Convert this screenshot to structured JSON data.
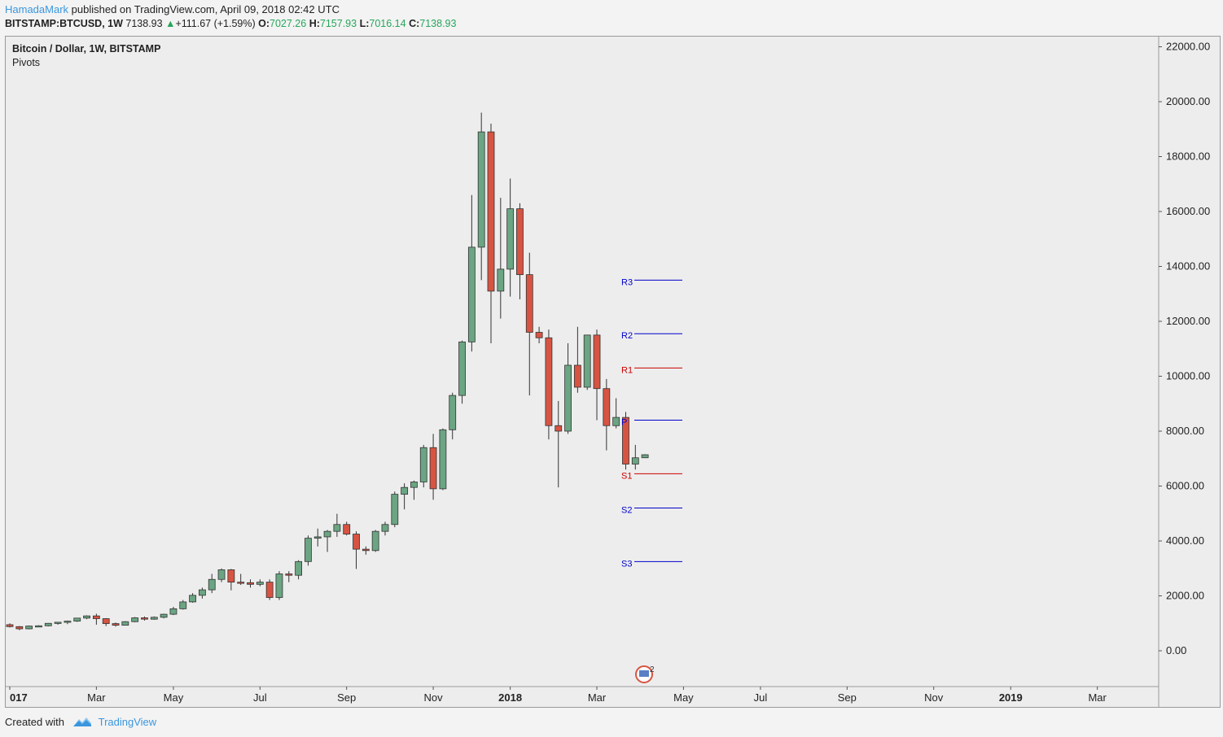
{
  "header": {
    "author": "HamadaMark",
    "published": "published on TradingView.com, April 09, 2018 02:42 UTC"
  },
  "quote": {
    "symbol": "BITSTAMP:BTCUSD, 1W",
    "last": "7138.93",
    "change": "+111.67 (+1.59%)",
    "o_label": "O:",
    "o": "7027.26",
    "h_label": "H:",
    "h": "7157.93",
    "l_label": "L:",
    "l": "7016.14",
    "c_label": "C:",
    "c": "7138.93"
  },
  "legend": {
    "title": "Bitcoin / Dollar, 1W, BITSTAMP",
    "indicator": "Pivots"
  },
  "footer": {
    "created": "Created with",
    "brand": "TradingView"
  },
  "colors": {
    "up": "#6ba583",
    "down": "#d75442",
    "pivot_blue": "#0000cc",
    "pivot_red": "#cc0000",
    "brand": "#3a96dd"
  },
  "chart_data": {
    "type": "candlestick",
    "y_ticks": [
      0,
      2000,
      4000,
      6000,
      8000,
      10000,
      12000,
      14000,
      16000,
      18000,
      20000,
      22000
    ],
    "y_tick_labels": [
      "0.00",
      "2000.00",
      "4000.00",
      "6000.00",
      "8000.00",
      "10000.00",
      "12000.00",
      "14000.00",
      "16000.00",
      "18000.00",
      "20000.00",
      "22000.00"
    ],
    "x_ticks": [
      {
        "label": "017",
        "week": 0,
        "bold": true
      },
      {
        "label": "Mar",
        "week": 9
      },
      {
        "label": "May",
        "week": 17
      },
      {
        "label": "Jul",
        "week": 26
      },
      {
        "label": "Sep",
        "week": 35
      },
      {
        "label": "Nov",
        "week": 44
      },
      {
        "label": "2018",
        "week": 52,
        "bold": true
      },
      {
        "label": "Mar",
        "week": 61
      },
      {
        "label": "May",
        "week": 70
      },
      {
        "label": "Jul",
        "week": 78
      },
      {
        "label": "Sep",
        "week": 87
      },
      {
        "label": "Nov",
        "week": 96
      },
      {
        "label": "2019",
        "week": 104,
        "bold": true
      },
      {
        "label": "Mar",
        "week": 113
      }
    ],
    "ohlc": [
      [
        950,
        1000,
        850,
        880
      ],
      [
        880,
        900,
        750,
        800
      ],
      [
        800,
        920,
        780,
        900
      ],
      [
        900,
        930,
        880,
        910
      ],
      [
        910,
        1010,
        890,
        1000
      ],
      [
        1000,
        1050,
        950,
        1040
      ],
      [
        1040,
        1100,
        970,
        1080
      ],
      [
        1080,
        1200,
        1050,
        1190
      ],
      [
        1190,
        1290,
        1150,
        1270
      ],
      [
        1270,
        1350,
        950,
        1170
      ],
      [
        1170,
        1190,
        900,
        990
      ],
      [
        990,
        1030,
        880,
        930
      ],
      [
        930,
        1080,
        920,
        1060
      ],
      [
        1060,
        1230,
        1040,
        1200
      ],
      [
        1200,
        1250,
        1100,
        1150
      ],
      [
        1150,
        1250,
        1130,
        1220
      ],
      [
        1220,
        1350,
        1180,
        1330
      ],
      [
        1330,
        1600,
        1300,
        1530
      ],
      [
        1530,
        1850,
        1500,
        1780
      ],
      [
        1780,
        2100,
        1750,
        2020
      ],
      [
        2020,
        2300,
        1900,
        2220
      ],
      [
        2220,
        2800,
        2100,
        2600
      ],
      [
        2600,
        3000,
        2500,
        2950
      ],
      [
        2950,
        2980,
        2200,
        2500
      ],
      [
        2500,
        2800,
        2400,
        2480
      ],
      [
        2480,
        2600,
        2300,
        2420
      ],
      [
        2420,
        2600,
        2350,
        2500
      ],
      [
        2500,
        2600,
        1850,
        1940
      ],
      [
        1940,
        2900,
        1850,
        2800
      ],
      [
        2800,
        2900,
        2500,
        2750
      ],
      [
        2750,
        3300,
        2600,
        3250
      ],
      [
        3250,
        4200,
        3100,
        4100
      ],
      [
        4100,
        4450,
        3800,
        4150
      ],
      [
        4150,
        4400,
        3600,
        4350
      ],
      [
        4350,
        4990,
        4150,
        4600
      ],
      [
        4600,
        4700,
        4200,
        4250
      ],
      [
        4250,
        4350,
        2980,
        3700
      ],
      [
        3700,
        3800,
        3500,
        3650
      ],
      [
        3650,
        4400,
        3600,
        4350
      ],
      [
        4350,
        4700,
        4200,
        4600
      ],
      [
        4600,
        5800,
        4500,
        5700
      ],
      [
        5700,
        6100,
        5150,
        5950
      ],
      [
        5950,
        6200,
        5500,
        6150
      ],
      [
        6150,
        7500,
        5950,
        7400
      ],
      [
        7400,
        7900,
        5500,
        5900
      ],
      [
        5900,
        8100,
        5850,
        8050
      ],
      [
        8050,
        9400,
        7700,
        9300
      ],
      [
        9300,
        11300,
        9000,
        11250
      ],
      [
        11250,
        16600,
        10900,
        14700
      ],
      [
        14700,
        19600,
        13500,
        18900
      ],
      [
        18900,
        19200,
        11200,
        13100
      ],
      [
        13100,
        16500,
        12100,
        13900
      ],
      [
        13900,
        17200,
        12900,
        16100
      ],
      [
        16100,
        16300,
        12800,
        13700
      ],
      [
        13700,
        14500,
        9300,
        11600
      ],
      [
        11600,
        11800,
        11200,
        11400
      ],
      [
        11400,
        11700,
        7700,
        8200
      ],
      [
        8200,
        9100,
        5950,
        8000
      ],
      [
        8000,
        11200,
        7900,
        10400
      ],
      [
        10400,
        11800,
        9400,
        9600
      ],
      [
        9600,
        11500,
        9500,
        11500
      ],
      [
        11500,
        11700,
        8400,
        9550
      ],
      [
        9550,
        9900,
        7300,
        8200
      ],
      [
        8200,
        9200,
        8100,
        8500
      ],
      [
        8500,
        8700,
        6600,
        6800
      ],
      [
        6800,
        7500,
        6600,
        7030
      ],
      [
        7030,
        7160,
        7020,
        7140
      ]
    ],
    "pivots": [
      {
        "label": "R3",
        "value": 13500,
        "color": "blue"
      },
      {
        "label": "R2",
        "value": 11550,
        "color": "blue"
      },
      {
        "label": "R1",
        "value": 10300,
        "color": "red"
      },
      {
        "label": "P",
        "value": 8400,
        "color": "blue"
      },
      {
        "label": "S1",
        "value": 6450,
        "color": "red"
      },
      {
        "label": "S2",
        "value": 5200,
        "color": "blue"
      },
      {
        "label": "S3",
        "value": 3250,
        "color": "blue"
      }
    ],
    "events_badge": "2"
  }
}
